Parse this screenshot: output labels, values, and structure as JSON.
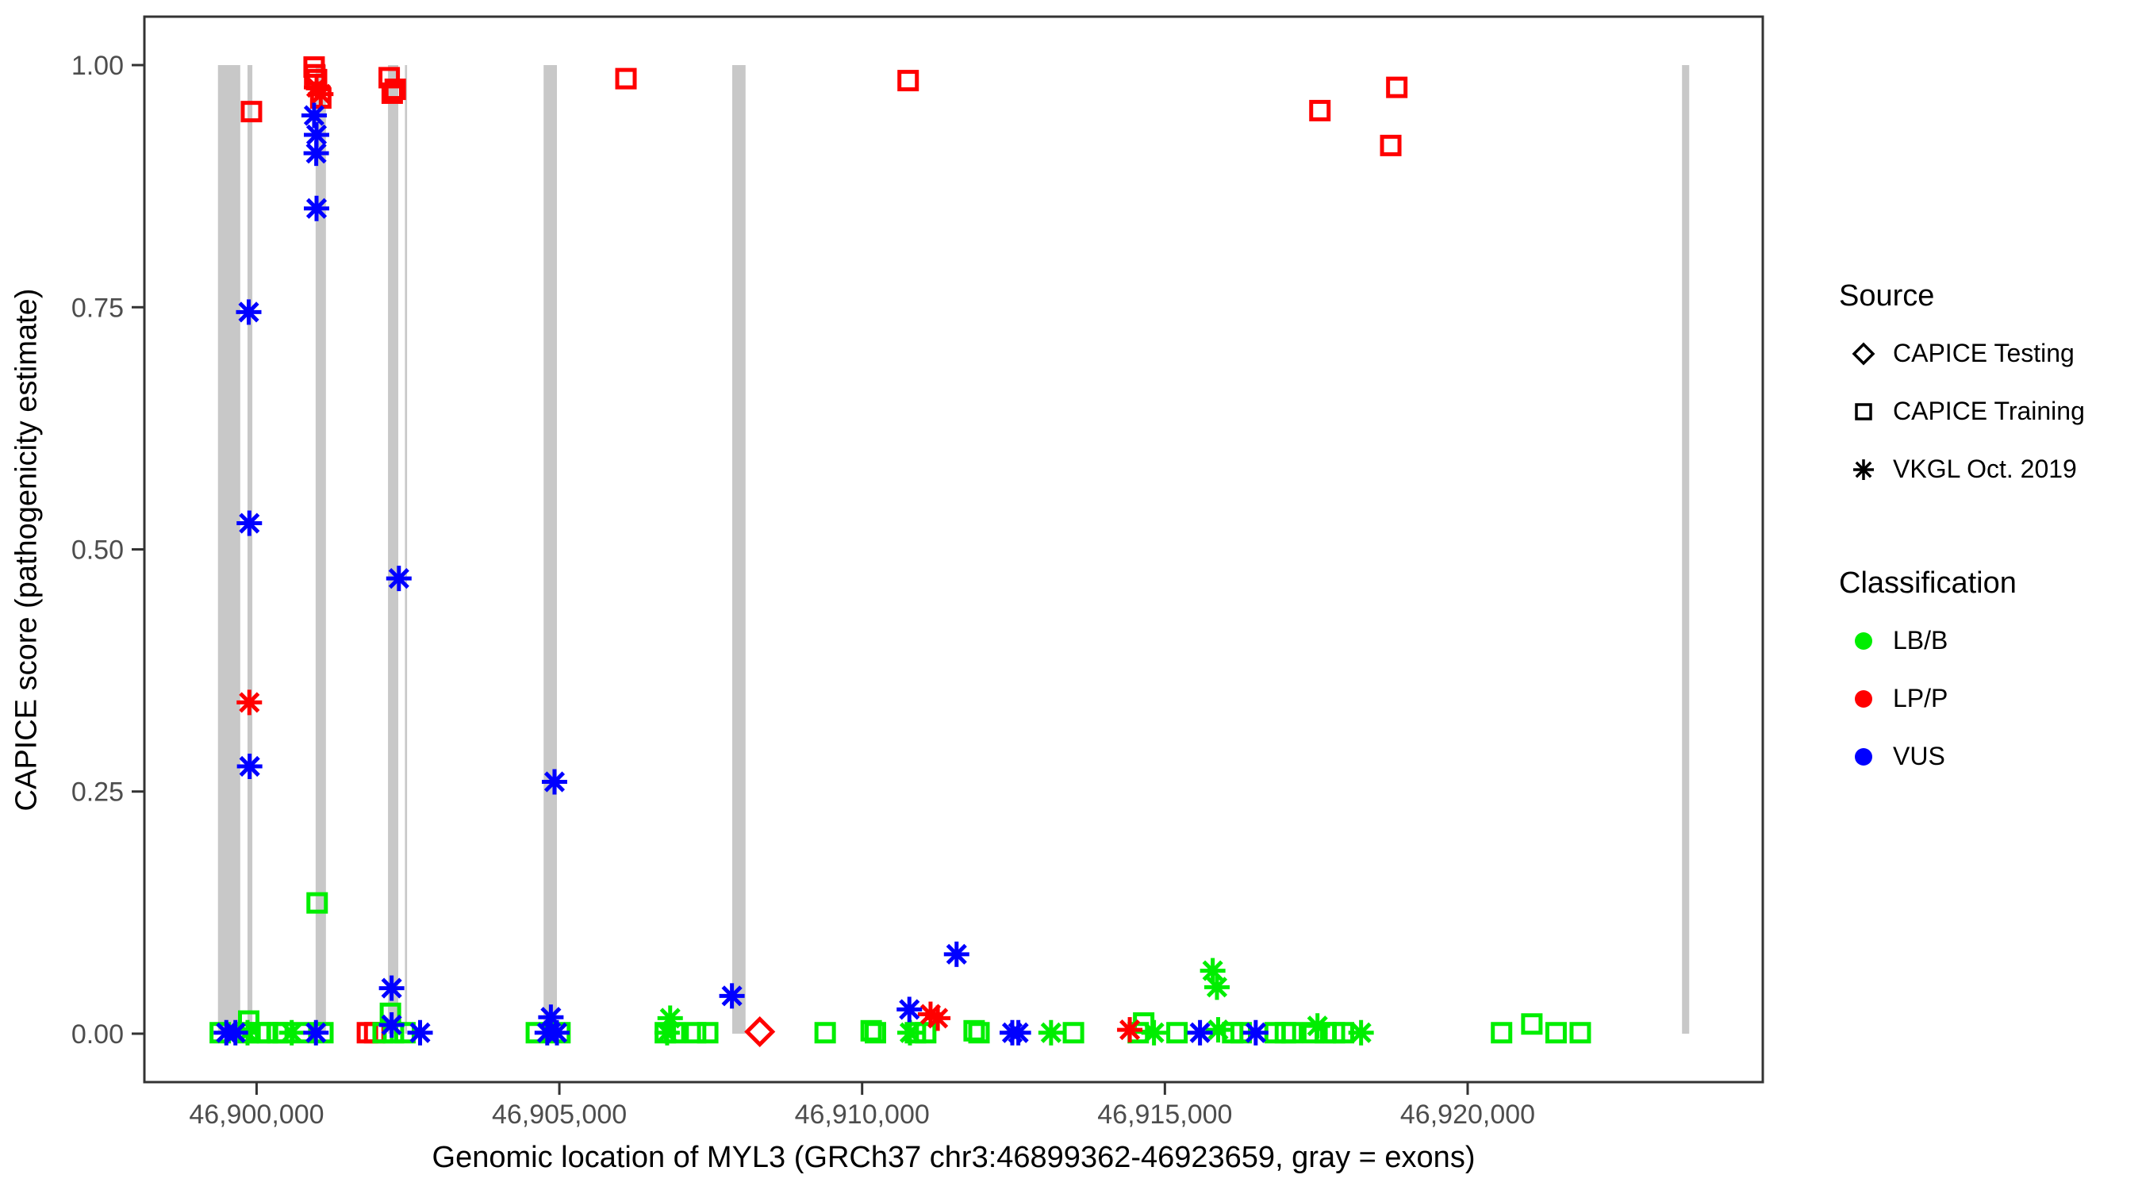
{
  "chart_data": {
    "type": "scatter",
    "title": "",
    "xlabel": "Genomic location of MYL3 (GRCh37 chr3:46899362-46923659, gray = exons)",
    "ylabel": "CAPICE score (pathogenicity estimate)",
    "xlim": [
      46898147,
      46924874
    ],
    "ylim": [
      -0.05,
      1.05
    ],
    "grid": "off",
    "x_ticks": [
      {
        "value": 46900000,
        "label": "46,900,000"
      },
      {
        "value": 46905000,
        "label": "46,905,000"
      },
      {
        "value": 46910000,
        "label": "46,910,000"
      },
      {
        "value": 46915000,
        "label": "46,915,000"
      },
      {
        "value": 46920000,
        "label": "46,920,000"
      }
    ],
    "y_ticks": [
      {
        "value": 0.0,
        "label": "0.00"
      },
      {
        "value": 0.25,
        "label": "0.25"
      },
      {
        "value": 0.5,
        "label": "0.50"
      },
      {
        "value": 0.75,
        "label": "0.75"
      },
      {
        "value": 1.0,
        "label": "1.00"
      }
    ],
    "colors": {
      "lbb": "#00EE00",
      "lpp": "#FF0000",
      "vus": "#0000FF",
      "exon": "#C8C8C8",
      "axis": "#333333",
      "tick_text": "#4D4D4D"
    },
    "exons_note": "gray vertical bars mark exons, drawn from score 0 to 1",
    "exons": [
      [
        46899362,
        46899730
      ],
      [
        46899850,
        46899930
      ],
      [
        46900975,
        46901145
      ],
      [
        46902170,
        46902340
      ],
      [
        46902450,
        46902485
      ],
      [
        46904740,
        46904960
      ],
      [
        46907855,
        46908075
      ],
      [
        46923540,
        46923659
      ]
    ],
    "series": [
      {
        "name": "CAPICE Testing LP/P",
        "source": "CAPICE Testing",
        "classification": "LP/P",
        "shape": "diamond",
        "color": "#FF0000",
        "points": [
          [
            46908310,
            0.002
          ]
        ]
      },
      {
        "name": "CAPICE Training LP/P",
        "source": "CAPICE Training",
        "classification": "LP/P",
        "shape": "square",
        "color": "#FF0000",
        "points": [
          [
            46899915,
            0.952
          ],
          [
            46900950,
            0.998
          ],
          [
            46900960,
            0.99
          ],
          [
            46900990,
            0.985
          ],
          [
            46901060,
            0.966
          ],
          [
            46902190,
            0.987
          ],
          [
            46902290,
            0.975
          ],
          [
            46902240,
            0.971
          ],
          [
            46906100,
            0.986
          ],
          [
            46910760,
            0.984
          ],
          [
            46917560,
            0.953
          ],
          [
            46918830,
            0.977
          ],
          [
            46918730,
            0.917
          ],
          [
            46901830,
            0.001
          ],
          [
            46901950,
            0.001
          ]
        ]
      },
      {
        "name": "CAPICE Training LB/B",
        "source": "CAPICE Training",
        "classification": "LB/B",
        "shape": "square",
        "color": "#00EE00",
        "points": [
          [
            46899400,
            0.001
          ],
          [
            46899860,
            0.001
          ],
          [
            46899870,
            0.013
          ],
          [
            46900050,
            0.001
          ],
          [
            46900180,
            0.001
          ],
          [
            46900350,
            0.001
          ],
          [
            46900440,
            0.001
          ],
          [
            46900740,
            0.001
          ],
          [
            46901000,
            0.135
          ],
          [
            46901095,
            0.001
          ],
          [
            46902090,
            0.001
          ],
          [
            46902210,
            0.021
          ],
          [
            46902260,
            0.001
          ],
          [
            46902450,
            0.001
          ],
          [
            46904620,
            0.001
          ],
          [
            46905010,
            0.001
          ],
          [
            46906750,
            0.001
          ],
          [
            46906900,
            0.001
          ],
          [
            46907250,
            0.001
          ],
          [
            46907450,
            0.001
          ],
          [
            46909390,
            0.001
          ],
          [
            46910150,
            0.003
          ],
          [
            46910220,
            0.001
          ],
          [
            46910880,
            0.001
          ],
          [
            46911050,
            0.001
          ],
          [
            46911850,
            0.003
          ],
          [
            46911930,
            0.001
          ],
          [
            46913490,
            0.001
          ],
          [
            46914560,
            0.001
          ],
          [
            46914650,
            0.011
          ],
          [
            46915200,
            0.001
          ],
          [
            46916120,
            0.001
          ],
          [
            46916260,
            0.001
          ],
          [
            46916820,
            0.001
          ],
          [
            46916990,
            0.001
          ],
          [
            46917100,
            0.001
          ],
          [
            46917450,
            0.001
          ],
          [
            46917650,
            0.001
          ],
          [
            46917800,
            0.001
          ],
          [
            46917950,
            0.001
          ],
          [
            46920560,
            0.001
          ],
          [
            46921060,
            0.01
          ],
          [
            46921460,
            0.001
          ],
          [
            46921860,
            0.001
          ]
        ]
      },
      {
        "name": "VKGL Oct. 2019 LB/B",
        "source": "VKGL Oct. 2019",
        "classification": "LB/B",
        "shape": "asterisk",
        "color": "#00EE00",
        "points": [
          [
            46899850,
            0.001
          ],
          [
            46900580,
            0.001
          ],
          [
            46906830,
            0.016
          ],
          [
            46906780,
            0.001
          ],
          [
            46910790,
            0.001
          ],
          [
            46913120,
            0.001
          ],
          [
            46914820,
            0.001
          ],
          [
            46915790,
            0.065
          ],
          [
            46915860,
            0.048
          ],
          [
            46915880,
            0.004
          ],
          [
            46917520,
            0.008
          ],
          [
            46918240,
            0.001
          ]
        ]
      },
      {
        "name": "VKGL Oct. 2019 LP/P",
        "source": "VKGL Oct. 2019",
        "classification": "LP/P",
        "shape": "asterisk",
        "color": "#FF0000",
        "points": [
          [
            46899880,
            0.342
          ],
          [
            46900990,
            0.977
          ],
          [
            46901060,
            0.97
          ],
          [
            46911130,
            0.02
          ],
          [
            46911250,
            0.016
          ],
          [
            46914420,
            0.004
          ]
        ]
      },
      {
        "name": "VKGL Oct. 2019 VUS",
        "source": "VKGL Oct. 2019",
        "classification": "VUS",
        "shape": "asterisk",
        "color": "#0000FF",
        "points": [
          [
            46899500,
            0.001
          ],
          [
            46899650,
            0.001
          ],
          [
            46899870,
            0.745
          ],
          [
            46899880,
            0.527
          ],
          [
            46899885,
            0.276
          ],
          [
            46900950,
            0.948
          ],
          [
            46900990,
            0.928
          ],
          [
            46900985,
            0.909
          ],
          [
            46900990,
            0.852
          ],
          [
            46900980,
            0.001
          ],
          [
            46902350,
            0.47
          ],
          [
            46902230,
            0.047
          ],
          [
            46902230,
            0.009
          ],
          [
            46902700,
            0.001
          ],
          [
            46904920,
            0.26
          ],
          [
            46904860,
            0.017
          ],
          [
            46904800,
            0.001
          ],
          [
            46904960,
            0.001
          ],
          [
            46907850,
            0.039
          ],
          [
            46910780,
            0.025
          ],
          [
            46911560,
            0.082
          ],
          [
            46912480,
            0.001
          ],
          [
            46912580,
            0.001
          ],
          [
            46915580,
            0.001
          ],
          [
            46916500,
            0.001
          ]
        ]
      }
    ],
    "legend": {
      "position": "right",
      "source": {
        "title": "Source",
        "items": [
          {
            "label": "CAPICE Testing",
            "shape": "diamond"
          },
          {
            "label": "CAPICE Training",
            "shape": "square"
          },
          {
            "label": "VKGL Oct. 2019",
            "shape": "asterisk"
          }
        ]
      },
      "classification": {
        "title": "Classification",
        "items": [
          {
            "label": "LB/B",
            "color": "#00EE00"
          },
          {
            "label": "LP/P",
            "color": "#FF0000"
          },
          {
            "label": "VUS",
            "color": "#0000FF"
          }
        ]
      }
    }
  }
}
